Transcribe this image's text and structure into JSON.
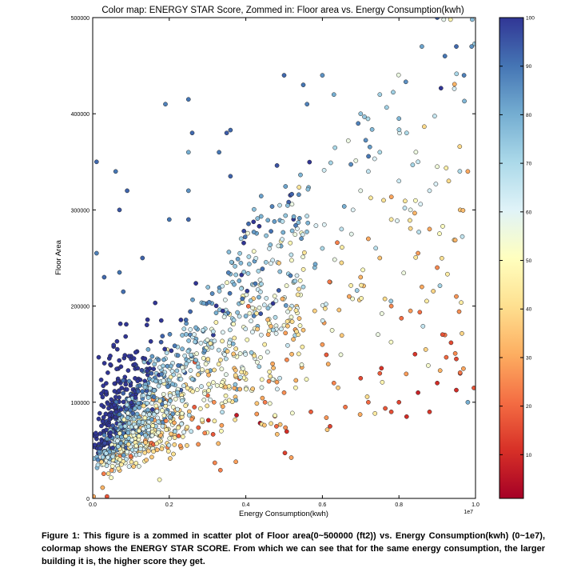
{
  "caption": "Figure 1: This figure is a zommed in scatter plot of Floor area(0~500000 (ft2)) vs. Energy Consumption(kwh) (0~1e7), colormap shows the ENERGY STAR SCORE. From which we can see that for the same energy consumption, the larger building it is, the higher score they get.",
  "chart_data": {
    "type": "scatter",
    "title": "Color map: ENERGY STAR Score, Zommed in: Floor area vs. Energy Consumption(kwh)",
    "xlabel": "Energy Consumption(kwh)",
    "ylabel": "Floor Area",
    "x_offset_label": "1e7",
    "xlim": [
      0,
      1.0
    ],
    "ylim": [
      0,
      500000
    ],
    "x_ticks": [
      0.0,
      0.2,
      0.4,
      0.6,
      0.8,
      1.0
    ],
    "x_tick_labels": [
      "0.0",
      "0.2",
      "0.4",
      "0.6",
      "0.8",
      "1.0"
    ],
    "y_ticks": [
      0,
      100000,
      200000,
      300000,
      400000,
      500000
    ],
    "y_tick_labels": [
      "0",
      "100000",
      "200000",
      "300000",
      "400000",
      "500000"
    ],
    "grid": false,
    "colorbar": {
      "label": "",
      "range": [
        1,
        100
      ],
      "ticks": [
        10,
        20,
        30,
        40,
        50,
        60,
        70,
        80,
        90,
        100
      ],
      "tick_labels": [
        "10",
        "20",
        "30",
        "40",
        "50",
        "60",
        "70",
        "80",
        "90",
        "100"
      ],
      "colormap": "RdYlBu",
      "colors": [
        "#a50026",
        "#d73027",
        "#f46d43",
        "#fdae61",
        "#fee090",
        "#ffffbf",
        "#e0f3f8",
        "#abd9e9",
        "#74add1",
        "#4575b4",
        "#313695"
      ]
    },
    "point_count": 1500,
    "points": [
      [
        0.01,
        350000,
        92
      ],
      [
        0.06,
        340000,
        90
      ],
      [
        0.09,
        320000,
        93
      ],
      [
        0.07,
        300000,
        95
      ],
      [
        0.19,
        410000,
        88
      ],
      [
        0.25,
        415000,
        90
      ],
      [
        0.26,
        380000,
        92
      ],
      [
        0.25,
        360000,
        80
      ],
      [
        0.25,
        320000,
        85
      ],
      [
        0.35,
        380000,
        94
      ],
      [
        0.36,
        383000,
        92
      ],
      [
        0.33,
        360000,
        90
      ],
      [
        0.36,
        335000,
        93
      ],
      [
        0.2,
        290000,
        90
      ],
      [
        0.25,
        290000,
        92
      ],
      [
        0.13,
        250000,
        93
      ],
      [
        0.07,
        235000,
        90
      ],
      [
        0.08,
        215000,
        91
      ],
      [
        0.01,
        255000,
        88
      ],
      [
        0.03,
        230000,
        92
      ],
      [
        0.5,
        440000,
        92
      ],
      [
        0.55,
        430000,
        90
      ],
      [
        0.56,
        410000,
        88
      ],
      [
        0.6,
        440000,
        85
      ],
      [
        0.63,
        420000,
        80
      ],
      [
        0.7,
        400000,
        75
      ],
      [
        0.75,
        420000,
        72
      ],
      [
        0.8,
        395000,
        78
      ],
      [
        0.82,
        380000,
        70
      ],
      [
        0.85,
        350000,
        65
      ],
      [
        0.88,
        320000,
        62
      ],
      [
        0.9,
        345000,
        55
      ],
      [
        0.92,
        460000,
        90
      ],
      [
        0.95,
        470000,
        92
      ],
      [
        0.97,
        440000,
        88
      ],
      [
        0.9,
        500000,
        93
      ],
      [
        0.86,
        470000,
        82
      ],
      [
        0.99,
        470000,
        85
      ],
      [
        0.98,
        340000,
        30
      ],
      [
        0.93,
        330000,
        40
      ],
      [
        0.96,
        300000,
        35
      ],
      [
        0.88,
        280000,
        30
      ],
      [
        0.85,
        255000,
        28
      ],
      [
        0.9,
        240000,
        25
      ],
      [
        0.86,
        220000,
        30
      ],
      [
        0.95,
        210000,
        27
      ],
      [
        0.72,
        270000,
        30
      ],
      [
        0.75,
        250000,
        35
      ],
      [
        0.7,
        230000,
        32
      ],
      [
        0.67,
        210000,
        30
      ],
      [
        0.78,
        200000,
        25
      ],
      [
        0.83,
        195000,
        28
      ],
      [
        0.92,
        170000,
        22
      ],
      [
        0.95,
        145000,
        15
      ],
      [
        0.96,
        130000,
        12
      ],
      [
        0.98,
        100000,
        80
      ],
      [
        0.9,
        120000,
        10
      ],
      [
        0.85,
        110000,
        8
      ],
      [
        0.88,
        90000,
        12
      ],
      [
        0.8,
        100000,
        14
      ],
      [
        0.82,
        85000,
        10
      ],
      [
        0.75,
        130000,
        18
      ],
      [
        0.7,
        125000,
        15
      ],
      [
        0.72,
        100000,
        20
      ],
      [
        0.78,
        90000,
        16
      ],
      [
        0.66,
        95000,
        22
      ],
      [
        0.6,
        160000,
        28
      ],
      [
        0.63,
        120000,
        24
      ],
      [
        0.62,
        75000,
        14
      ],
      [
        0.57,
        90000,
        18
      ],
      [
        0.5,
        110000,
        26
      ],
      [
        0.48,
        75000,
        20
      ],
      [
        0.45,
        100000,
        23
      ],
      [
        0.4,
        130000,
        40
      ],
      [
        0.42,
        150000,
        50
      ],
      [
        0.44,
        170000,
        60
      ],
      [
        0.5,
        180000,
        55
      ],
      [
        0.52,
        200000,
        65
      ],
      [
        0.55,
        220000,
        70
      ],
      [
        0.58,
        240000,
        75
      ],
      [
        0.6,
        260000,
        70
      ],
      [
        0.65,
        280000,
        66
      ],
      [
        0.68,
        300000,
        60
      ],
      [
        0.7,
        320000,
        58
      ],
      [
        0.72,
        340000,
        66
      ],
      [
        0.75,
        360000,
        70
      ],
      [
        0.8,
        330000,
        64
      ],
      [
        0.83,
        300000,
        58
      ],
      [
        0.78,
        290000,
        45
      ],
      [
        0.76,
        310000,
        42
      ],
      [
        0.65,
        245000,
        40
      ],
      [
        0.62,
        225000,
        44
      ],
      [
        0.58,
        195000,
        38
      ],
      [
        0.55,
        175000,
        35
      ],
      [
        0.52,
        150000,
        33
      ],
      [
        0.47,
        140000,
        30
      ]
    ]
  }
}
